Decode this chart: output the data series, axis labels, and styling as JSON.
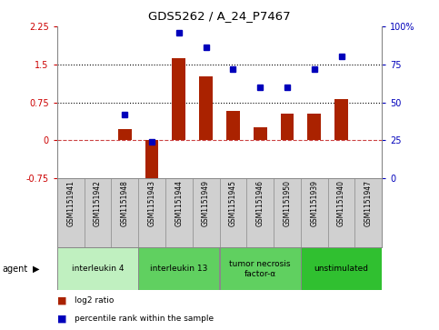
{
  "title": "GDS5262 / A_24_P7467",
  "samples": [
    "GSM1151941",
    "GSM1151942",
    "GSM1151948",
    "GSM1151943",
    "GSM1151944",
    "GSM1151949",
    "GSM1151945",
    "GSM1151946",
    "GSM1151950",
    "GSM1151939",
    "GSM1151940",
    "GSM1151947"
  ],
  "log2_ratio": [
    0.0,
    0.0,
    0.22,
    -1.05,
    1.62,
    1.27,
    0.58,
    0.25,
    0.52,
    0.52,
    0.82,
    0.0
  ],
  "percentile": [
    null,
    null,
    42,
    24,
    96,
    86,
    72,
    60,
    60,
    72,
    80,
    null
  ],
  "ylim_left": [
    -0.75,
    2.25
  ],
  "ylim_right": [
    0,
    100
  ],
  "yticks_left": [
    -0.75,
    0,
    0.75,
    1.5,
    2.25
  ],
  "yticks_right": [
    0,
    25,
    50,
    75,
    100
  ],
  "hlines": [
    0.75,
    1.5
  ],
  "agents": [
    {
      "label": "interleukin 4",
      "start": 0,
      "end": 3,
      "color": "#c0f0c0"
    },
    {
      "label": "interleukin 13",
      "start": 3,
      "end": 6,
      "color": "#60d060"
    },
    {
      "label": "tumor necrosis\nfactor-α",
      "start": 6,
      "end": 9,
      "color": "#60d060"
    },
    {
      "label": "unstimulated",
      "start": 9,
      "end": 12,
      "color": "#30c030"
    }
  ],
  "bar_color": "#aa2200",
  "dot_color": "#0000bb",
  "bar_width": 0.5,
  "legend_items": [
    {
      "label": "log2 ratio",
      "color": "#aa2200"
    },
    {
      "label": "percentile rank within the sample",
      "color": "#0000bb"
    }
  ],
  "agent_label": "agent",
  "sample_bg": "#d0d0d0",
  "border_color": "#888888"
}
